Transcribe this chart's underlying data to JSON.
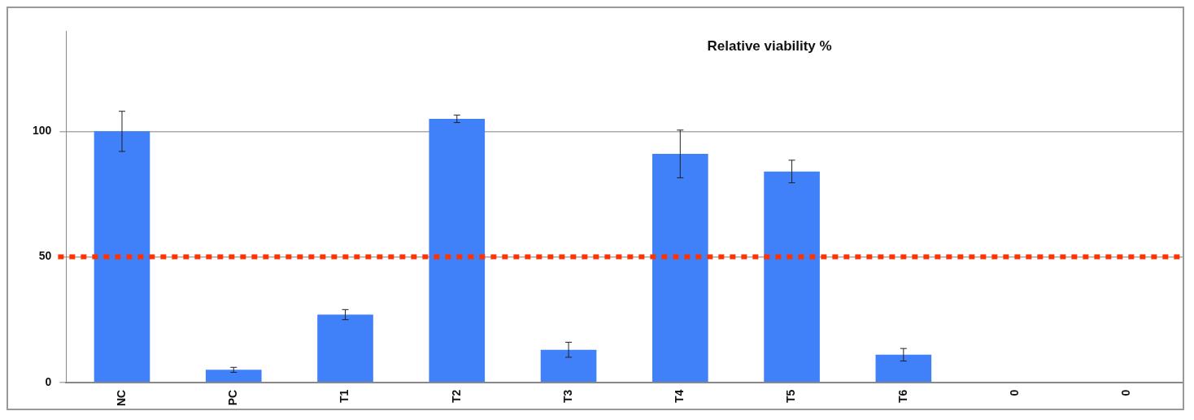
{
  "chart_data": {
    "type": "bar",
    "title": "Relative viability %",
    "categories": [
      "NC",
      "PC",
      "T1",
      "T2",
      "T3",
      "T4",
      "T5",
      "T6",
      "0",
      "0"
    ],
    "values": [
      100,
      5,
      27,
      105,
      13,
      91,
      84,
      11,
      0,
      0
    ],
    "errors": [
      8,
      1,
      2,
      1.5,
      3,
      9.5,
      4.5,
      2.5,
      null,
      null
    ],
    "color": "#4080f8",
    "ylim": [
      0,
      140
    ],
    "yticks": [
      0,
      50,
      100
    ],
    "grid": "y",
    "ref_lines": [
      {
        "axis": "y",
        "value": 50,
        "color": "#ff3300",
        "line_style": "dotted"
      }
    ],
    "legend": false
  }
}
